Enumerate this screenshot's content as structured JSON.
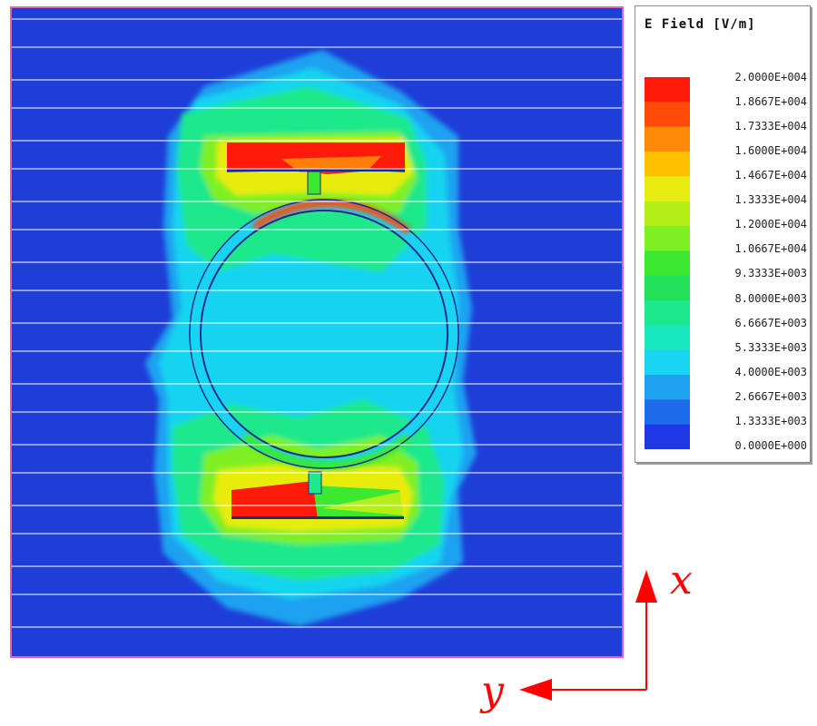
{
  "legend": {
    "title": "E Field [V/m]",
    "labels": [
      "2.0000E+004",
      "1.8667E+004",
      "1.7333E+004",
      "1.6000E+004",
      "1.4667E+004",
      "1.3333E+004",
      "1.2000E+004",
      "1.0667E+004",
      "9.3333E+003",
      "8.0000E+003",
      "6.6667E+003",
      "5.3333E+003",
      "4.0000E+003",
      "2.6667E+003",
      "1.3333E+003",
      "0.0000E+000"
    ],
    "colors": [
      "#ff1a0a",
      "#ff4a08",
      "#ff8a0a",
      "#ffc000",
      "#e8ec10",
      "#b4f018",
      "#7ef024",
      "#3ce830",
      "#22e05a",
      "#1ee88c",
      "#18e8c0",
      "#18d4f0",
      "#1ea2f0",
      "#1e6cea",
      "#1e38e6"
    ]
  },
  "axes": {
    "x_label": "x",
    "y_label": "y",
    "arrow_color": "#ff0000"
  },
  "colors": {
    "background_field": "#1f3ed8",
    "frame": "#e060c0",
    "scan_line": "#ffffff"
  }
}
